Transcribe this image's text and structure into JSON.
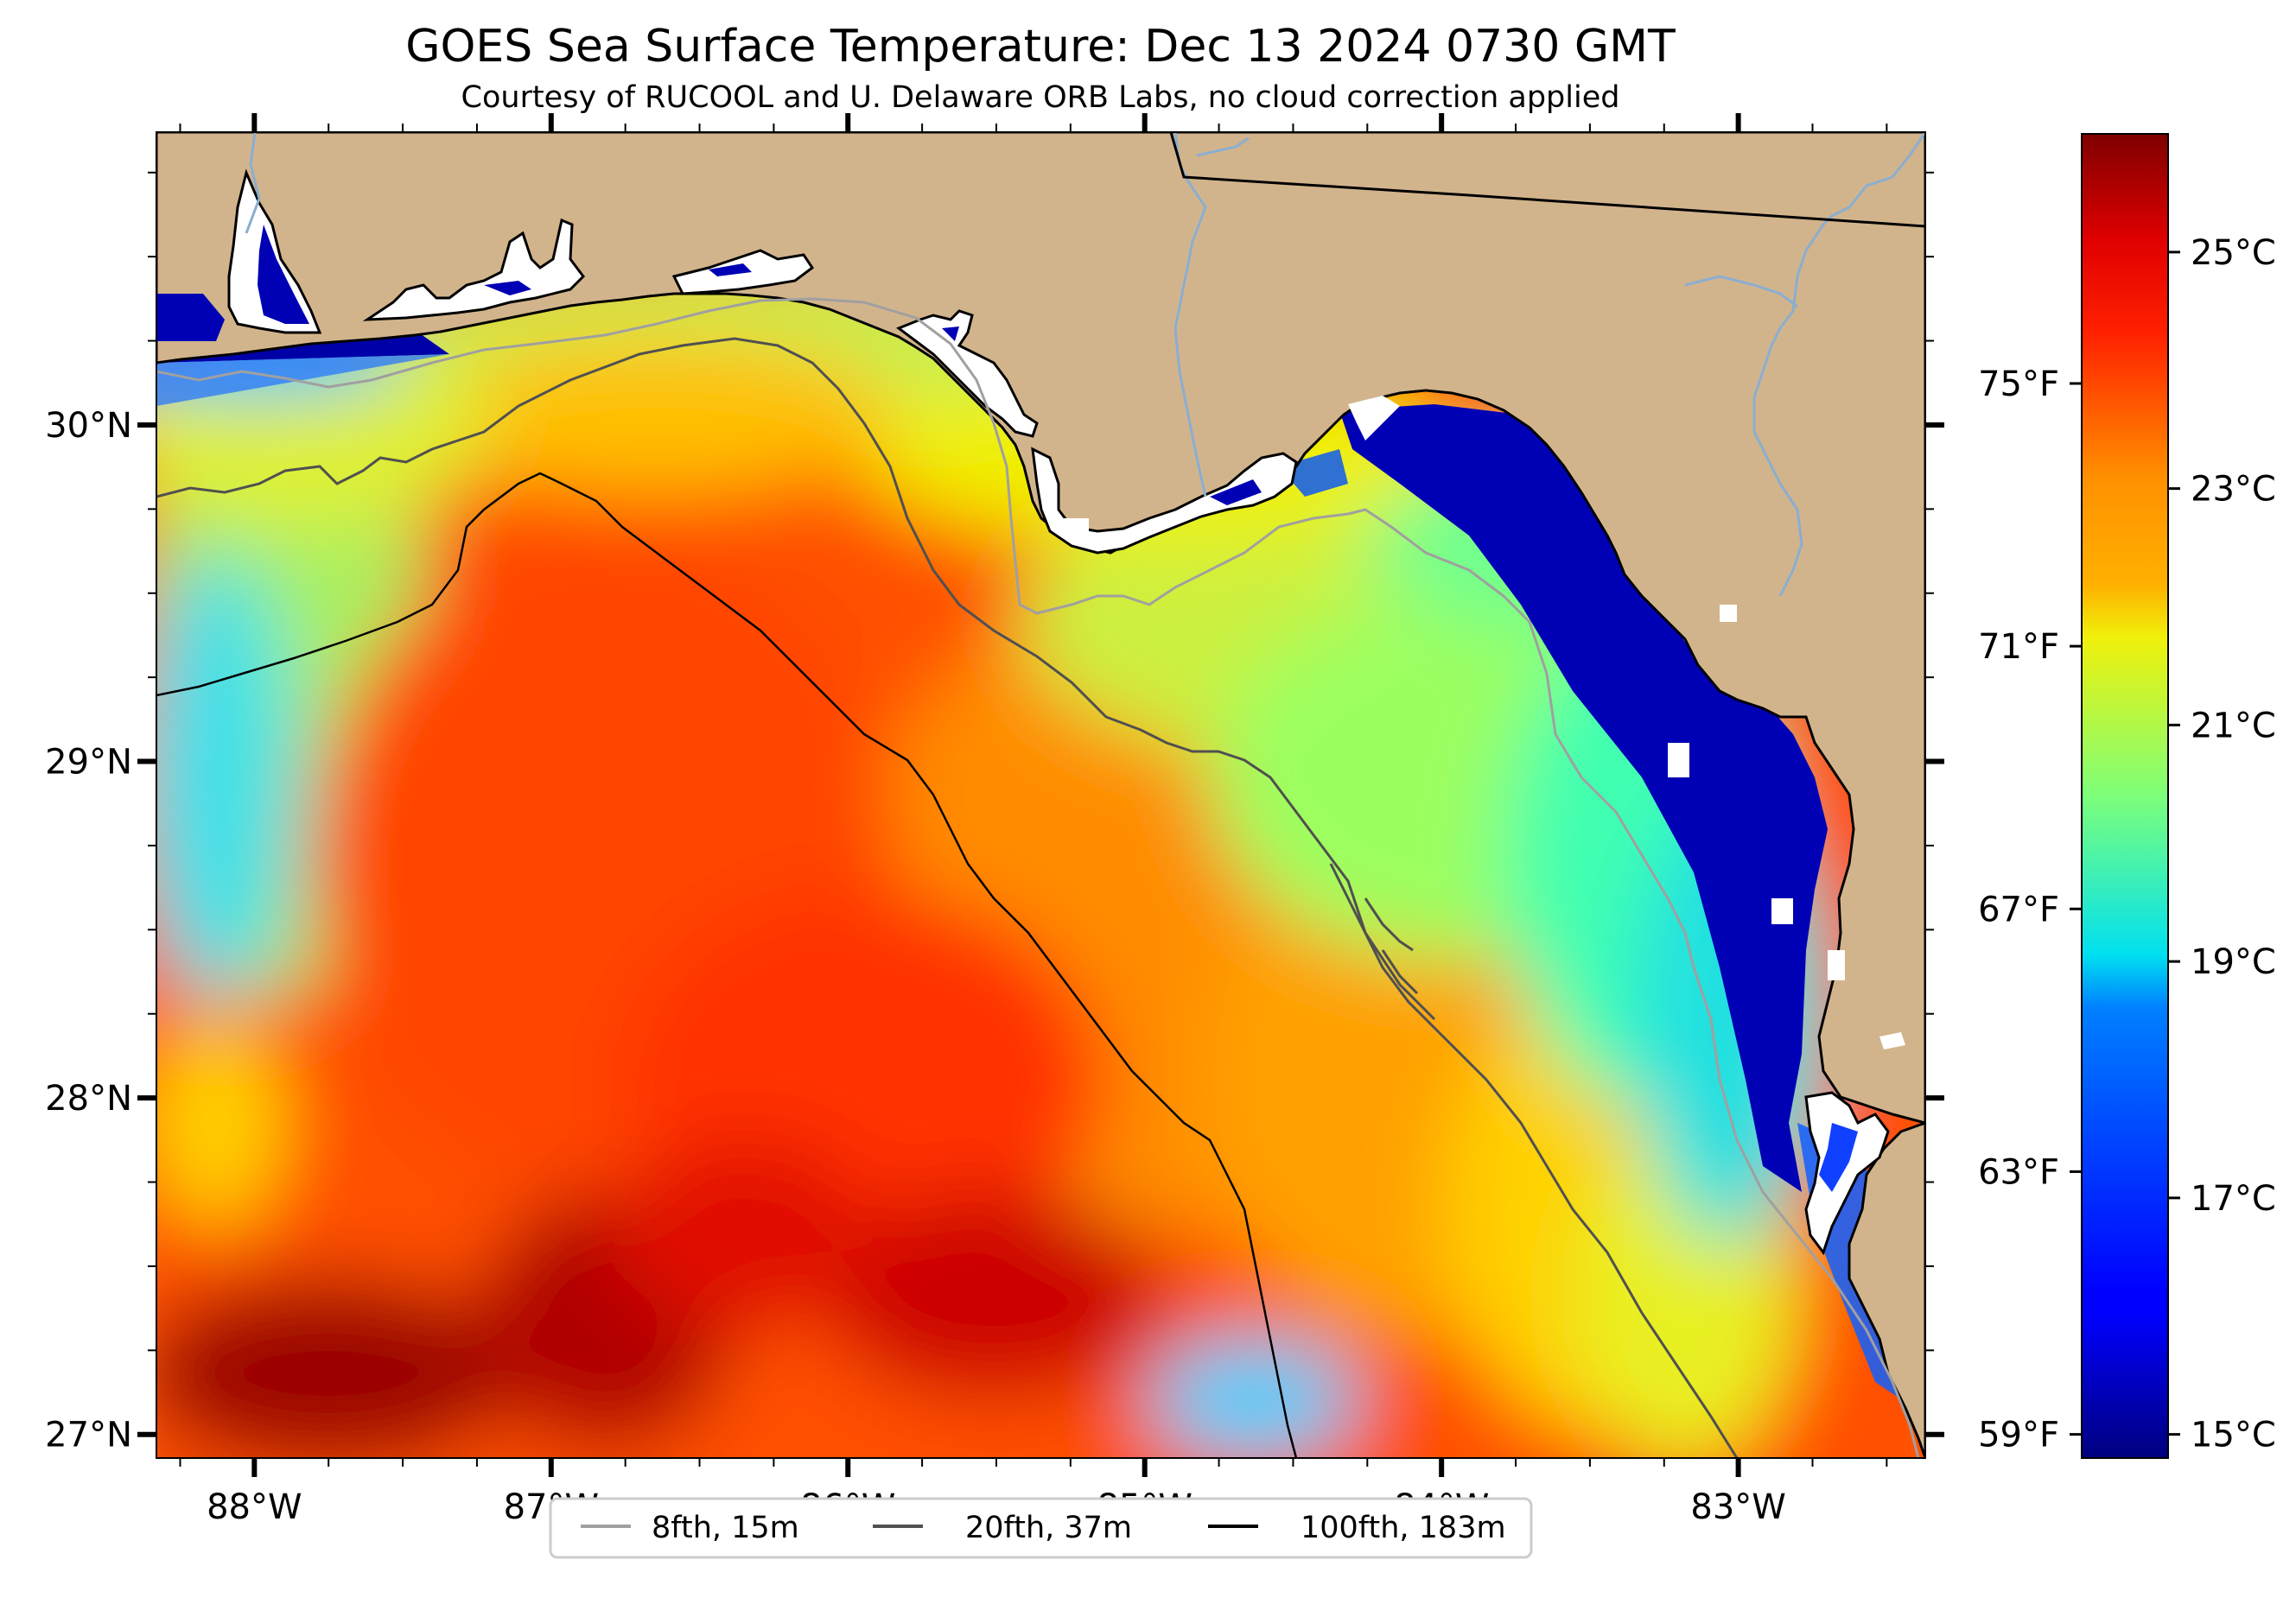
{
  "title": "GOES Sea Surface Temperature: Dec 13 2024 0730 GMT",
  "subtitle": "Courtesy of RUCOOL and U. Delaware ORB Labs, no cloud correction applied",
  "map": {
    "extent_lon": [
      -88.33,
      -82.37
    ],
    "extent_lat": [
      26.93,
      30.87
    ],
    "land_color": "#d2b48c",
    "cloud_color": "#ffffff",
    "lon_ticks": [
      {
        "value": -88,
        "label": "88°W"
      },
      {
        "value": -87,
        "label": "87°W"
      },
      {
        "value": -86,
        "label": "86°W"
      },
      {
        "value": -85,
        "label": "85°W"
      },
      {
        "value": -84,
        "label": "84°W"
      },
      {
        "value": -83,
        "label": "83°W"
      }
    ],
    "lat_ticks": [
      {
        "value": 30,
        "label": "30°N"
      },
      {
        "value": 29,
        "label": "29°N"
      },
      {
        "value": 28,
        "label": "28°N"
      },
      {
        "value": 27,
        "label": "27°N"
      }
    ]
  },
  "colorbar": {
    "colormap": "jet",
    "min_c": 14.8,
    "max_c": 26.0,
    "celsius_ticks": [
      {
        "value": 25,
        "label": "25°C"
      },
      {
        "value": 23,
        "label": "23°C"
      },
      {
        "value": 21,
        "label": "21°C"
      },
      {
        "value": 19,
        "label": "19°C"
      },
      {
        "value": 17,
        "label": "17°C"
      },
      {
        "value": 15,
        "label": "15°C"
      }
    ],
    "fahrenheit_ticks": [
      {
        "value": 75,
        "label": "75°F"
      },
      {
        "value": 71,
        "label": "71°F"
      },
      {
        "value": 67,
        "label": "67°F"
      },
      {
        "value": 63,
        "label": "63°F"
      },
      {
        "value": 59,
        "label": "59°F"
      }
    ]
  },
  "legend": [
    {
      "label": "8fth, 15m",
      "color": "#a0a0a0"
    },
    {
      "label": "20fth, 37m",
      "color": "#505050"
    },
    {
      "label": "100fth, 183m",
      "color": "#000000"
    }
  ]
}
